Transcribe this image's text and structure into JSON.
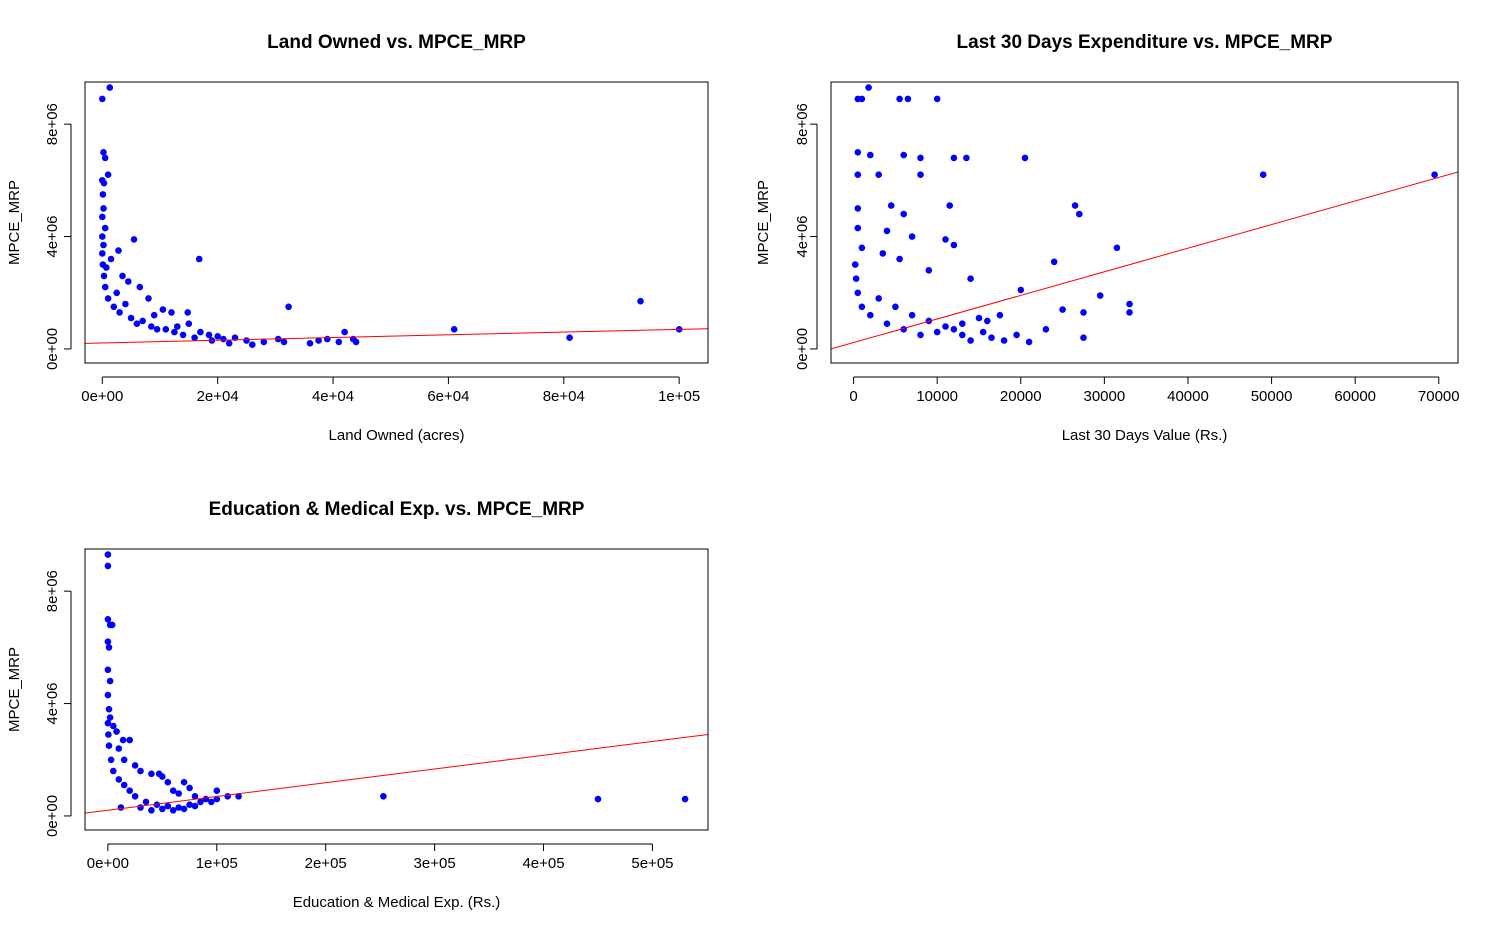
{
  "colors": {
    "points": "#0000ff",
    "fit_line": "#ff0000",
    "axis": "#000000",
    "background": "#ffffff"
  },
  "chart_data": [
    {
      "type": "scatter",
      "title": "Land Owned vs. MPCE_MRP",
      "xlabel": "Land Owned (acres)",
      "ylabel": "MPCE_MRP",
      "xlim": [
        -3000,
        105000
      ],
      "ylim": [
        -500000,
        9500000
      ],
      "x_ticks": [
        0,
        20000,
        40000,
        60000,
        80000,
        100000
      ],
      "x_tick_labels": [
        "0e+00",
        "2e+04",
        "4e+04",
        "6e+04",
        "8e+04",
        "1e+05"
      ],
      "y_ticks": [
        0,
        4000000,
        8000000
      ],
      "y_tick_labels": [
        "0e+00",
        "4e+06",
        "8e+06"
      ],
      "grid": false,
      "trend_line": {
        "x": [
          -3000,
          105000
        ],
        "y": [
          200000,
          720000
        ]
      },
      "points": [
        [
          0,
          8900000
        ],
        [
          1300,
          9300000
        ],
        [
          200,
          7000000
        ],
        [
          500,
          6800000
        ],
        [
          1000,
          6200000
        ],
        [
          0,
          6000000
        ],
        [
          300,
          5900000
        ],
        [
          100,
          5500000
        ],
        [
          200,
          5000000
        ],
        [
          0,
          4700000
        ],
        [
          500,
          4300000
        ],
        [
          0,
          4000000
        ],
        [
          5500,
          3900000
        ],
        [
          200,
          3700000
        ],
        [
          2800,
          3500000
        ],
        [
          1500,
          3200000
        ],
        [
          16800,
          3200000
        ],
        [
          3500,
          2600000
        ],
        [
          4500,
          2400000
        ],
        [
          6500,
          2200000
        ],
        [
          2500,
          2000000
        ],
        [
          8000,
          1800000
        ],
        [
          32300,
          1500000
        ],
        [
          10500,
          1400000
        ],
        [
          12000,
          1300000
        ],
        [
          9000,
          1200000
        ],
        [
          14800,
          1300000
        ],
        [
          4000,
          1600000
        ],
        [
          7000,
          1000000
        ],
        [
          15000,
          900000
        ],
        [
          13000,
          800000
        ],
        [
          11000,
          700000
        ],
        [
          17000,
          600000
        ],
        [
          18500,
          500000
        ],
        [
          20000,
          450000
        ],
        [
          23000,
          400000
        ],
        [
          25000,
          300000
        ],
        [
          28000,
          250000
        ],
        [
          30500,
          350000
        ],
        [
          31500,
          250000
        ],
        [
          36000,
          200000
        ],
        [
          37500,
          300000
        ],
        [
          39000,
          350000
        ],
        [
          41000,
          250000
        ],
        [
          42000,
          600000
        ],
        [
          43500,
          350000
        ],
        [
          44000,
          250000
        ],
        [
          61000,
          700000
        ],
        [
          81000,
          400000
        ],
        [
          93300,
          1700000
        ],
        [
          100000,
          700000
        ],
        [
          22000,
          200000
        ],
        [
          26000,
          150000
        ],
        [
          19000,
          300000
        ],
        [
          21000,
          350000
        ],
        [
          16000,
          400000
        ],
        [
          14000,
          500000
        ],
        [
          12500,
          600000
        ],
        [
          9500,
          700000
        ],
        [
          8500,
          800000
        ],
        [
          6000,
          900000
        ],
        [
          5000,
          1100000
        ],
        [
          3000,
          1300000
        ],
        [
          2000,
          1500000
        ],
        [
          1000,
          1800000
        ],
        [
          500,
          2200000
        ],
        [
          300,
          2600000
        ],
        [
          100,
          3000000
        ],
        [
          0,
          3400000
        ],
        [
          700,
          2900000
        ]
      ]
    },
    {
      "type": "scatter",
      "title": "Last 30 Days Expenditure vs. MPCE_MRP",
      "xlabel": "Last 30 Days Value (Rs.)",
      "ylabel": "MPCE_MRP",
      "xlim": [
        -2700,
        72300
      ],
      "ylim": [
        -500000,
        9500000
      ],
      "x_ticks": [
        0,
        10000,
        20000,
        30000,
        40000,
        50000,
        60000,
        70000
      ],
      "x_tick_labels": [
        "0",
        "10000",
        "20000",
        "30000",
        "40000",
        "50000",
        "60000",
        "70000"
      ],
      "y_ticks": [
        0,
        4000000,
        8000000
      ],
      "y_tick_labels": [
        "0e+00",
        "4e+06",
        "8e+06"
      ],
      "grid": false,
      "trend_line": {
        "x": [
          -2700,
          72300
        ],
        "y": [
          0,
          6300000
        ]
      },
      "points": [
        [
          500,
          8900000
        ],
        [
          1000,
          8900000
        ],
        [
          1800,
          9300000
        ],
        [
          5500,
          8900000
        ],
        [
          6500,
          8900000
        ],
        [
          10000,
          8900000
        ],
        [
          500,
          7000000
        ],
        [
          2000,
          6900000
        ],
        [
          6000,
          6900000
        ],
        [
          8000,
          6800000
        ],
        [
          12000,
          6800000
        ],
        [
          13500,
          6800000
        ],
        [
          20500,
          6800000
        ],
        [
          500,
          6200000
        ],
        [
          3000,
          6200000
        ],
        [
          8000,
          6200000
        ],
        [
          49000,
          6200000
        ],
        [
          69500,
          6200000
        ],
        [
          500,
          5000000
        ],
        [
          4500,
          5100000
        ],
        [
          6000,
          4800000
        ],
        [
          11500,
          5100000
        ],
        [
          26500,
          5100000
        ],
        [
          27000,
          4800000
        ],
        [
          500,
          4300000
        ],
        [
          4000,
          4200000
        ],
        [
          7000,
          4000000
        ],
        [
          11000,
          3900000
        ],
        [
          12000,
          3700000
        ],
        [
          24000,
          3100000
        ],
        [
          31500,
          3600000
        ],
        [
          1000,
          3600000
        ],
        [
          3500,
          3400000
        ],
        [
          5500,
          3200000
        ],
        [
          9000,
          2800000
        ],
        [
          14000,
          2500000
        ],
        [
          20000,
          2100000
        ],
        [
          29500,
          1900000
        ],
        [
          33000,
          1600000
        ],
        [
          33000,
          1300000
        ],
        [
          25000,
          1400000
        ],
        [
          27500,
          1300000
        ],
        [
          17500,
          1200000
        ],
        [
          15000,
          1100000
        ],
        [
          16000,
          1000000
        ],
        [
          13000,
          900000
        ],
        [
          12000,
          700000
        ],
        [
          10000,
          600000
        ],
        [
          23000,
          700000
        ],
        [
          27500,
          400000
        ],
        [
          19500,
          500000
        ],
        [
          16500,
          400000
        ],
        [
          14000,
          300000
        ],
        [
          8000,
          500000
        ],
        [
          6000,
          700000
        ],
        [
          4000,
          900000
        ],
        [
          2000,
          1200000
        ],
        [
          1000,
          1500000
        ],
        [
          500,
          2000000
        ],
        [
          300,
          2500000
        ],
        [
          200,
          3000000
        ],
        [
          3000,
          1800000
        ],
        [
          5000,
          1500000
        ],
        [
          7000,
          1200000
        ],
        [
          9000,
          1000000
        ],
        [
          11000,
          800000
        ],
        [
          13000,
          500000
        ],
        [
          15500,
          600000
        ],
        [
          18000,
          300000
        ],
        [
          21000,
          250000
        ]
      ]
    },
    {
      "type": "scatter",
      "title": "Education & Medical Exp. vs. MPCE_MRP",
      "xlabel": "Education & Medical Exp. (Rs.)",
      "ylabel": "MPCE_MRP",
      "xlim": [
        -21000,
        551000
      ],
      "ylim": [
        -500000,
        9500000
      ],
      "x_ticks": [
        0,
        100000,
        200000,
        300000,
        400000,
        500000
      ],
      "x_tick_labels": [
        "0e+00",
        "1e+05",
        "2e+05",
        "3e+05",
        "4e+05",
        "5e+05"
      ],
      "y_ticks": [
        0,
        4000000,
        8000000
      ],
      "y_tick_labels": [
        "0e+00",
        "4e+06",
        "8e+06"
      ],
      "grid": false,
      "trend_line": {
        "x": [
          -21000,
          551000
        ],
        "y": [
          100000,
          2900000
        ]
      },
      "points": [
        [
          0,
          9300000
        ],
        [
          0,
          8900000
        ],
        [
          0,
          7000000
        ],
        [
          2000,
          6800000
        ],
        [
          4000,
          6800000
        ],
        [
          0,
          6200000
        ],
        [
          1000,
          6000000
        ],
        [
          0,
          5200000
        ],
        [
          2000,
          4800000
        ],
        [
          0,
          4300000
        ],
        [
          1000,
          3800000
        ],
        [
          2000,
          3500000
        ],
        [
          5000,
          3200000
        ],
        [
          8000,
          3000000
        ],
        [
          14000,
          2700000
        ],
        [
          20000,
          2700000
        ],
        [
          10000,
          2400000
        ],
        [
          15000,
          2000000
        ],
        [
          25000,
          1800000
        ],
        [
          30000,
          1600000
        ],
        [
          40000,
          1500000
        ],
        [
          47000,
          1500000
        ],
        [
          50000,
          1400000
        ],
        [
          55000,
          1200000
        ],
        [
          70000,
          1200000
        ],
        [
          75000,
          1000000
        ],
        [
          60000,
          900000
        ],
        [
          65000,
          800000
        ],
        [
          80000,
          700000
        ],
        [
          90000,
          600000
        ],
        [
          100000,
          900000
        ],
        [
          110000,
          700000
        ],
        [
          120000,
          700000
        ],
        [
          100000,
          600000
        ],
        [
          85000,
          500000
        ],
        [
          95000,
          500000
        ],
        [
          75000,
          400000
        ],
        [
          65000,
          300000
        ],
        [
          55000,
          350000
        ],
        [
          45000,
          400000
        ],
        [
          35000,
          500000
        ],
        [
          25000,
          700000
        ],
        [
          20000,
          900000
        ],
        [
          15000,
          1100000
        ],
        [
          10000,
          1300000
        ],
        [
          5000,
          1600000
        ],
        [
          3000,
          2000000
        ],
        [
          1000,
          2500000
        ],
        [
          500,
          2900000
        ],
        [
          0,
          3300000
        ],
        [
          253000,
          700000
        ],
        [
          450000,
          600000
        ],
        [
          530000,
          600000
        ],
        [
          30000,
          300000
        ],
        [
          40000,
          200000
        ],
        [
          50000,
          250000
        ],
        [
          60000,
          200000
        ],
        [
          70000,
          250000
        ],
        [
          80000,
          350000
        ],
        [
          12000,
          300000
        ]
      ]
    }
  ]
}
